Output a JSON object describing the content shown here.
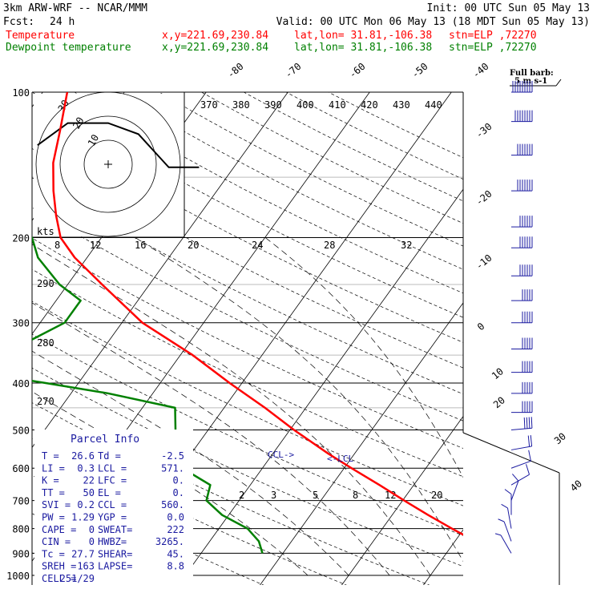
{
  "header": {
    "model": "3km ARW-WRF -- NCAR/MMM",
    "init": "Init: 00 UTC Sun 05 May 13",
    "fcst_label": "Fcst:",
    "fcst_hours": "24 h",
    "valid": "Valid: 00 UTC Mon 06 May 13 (18 MDT Sun 05 May 13)"
  },
  "legend": [
    {
      "name": "Temperature",
      "color": "#ff0000",
      "xy": "x,y=221.69,230.84",
      "latlon": "lat,lon= 31.81,-106.38",
      "stn": "stn=ELP ,72270"
    },
    {
      "name": "Dewpoint temperature",
      "color": "#008000",
      "xy": "x,y=221.69,230.84",
      "latlon": "lat,lon= 31.81,-106.38",
      "stn": "stn=ELP ,72270"
    }
  ],
  "barb_legend": {
    "title": "Full barb:",
    "value": "5 m s-1"
  },
  "hodograph": {
    "units": "kts",
    "ring_labels": [
      "30",
      "20",
      "10"
    ]
  },
  "parcel_info": {
    "title": "Parcel Info",
    "rows": [
      [
        "T  =",
        "26.6",
        "Td =",
        "-2.5"
      ],
      [
        "LI =",
        "0.3",
        "LCL =",
        "571."
      ],
      [
        "K  =",
        "22",
        "LFC =",
        "0."
      ],
      [
        "TT =",
        "50",
        "EL  =",
        "0."
      ],
      [
        "SVI =",
        "0.2",
        "CCL =",
        "560."
      ],
      [
        "PW =",
        "1.29",
        "YGP =",
        "0.0"
      ],
      [
        "CAPE =",
        "0",
        "SWEAT=",
        "222"
      ],
      [
        "CIN =",
        "0",
        "HWBZ=",
        "3265."
      ],
      [
        "Tc =",
        "27.7",
        "SHEAR=",
        "45."
      ],
      [
        "SREH =",
        "163",
        "LAPSE=",
        "8.8"
      ],
      [
        "CELL =",
        "251/29",
        "",
        ""
      ]
    ]
  },
  "annotations": {
    "ccl": "CCL->",
    "lcl": "<-LCL"
  },
  "colors": {
    "temperature": "#ff0000",
    "dewpoint": "#008000",
    "hodograph": "#000000",
    "barbs": "#1a1aa0",
    "parcel_text": "#1a1aa0"
  },
  "chart_data": {
    "type": "line",
    "title": "",
    "xlabel": "",
    "ylabel": "",
    "y_axis": "pressure (hPa, log scale)",
    "pressure_ticks": [
      100,
      200,
      300,
      400,
      500,
      600,
      700,
      800,
      900,
      1000
    ],
    "isotherm_labels": [
      "-80",
      "-70",
      "-60",
      "-50",
      "-40",
      "-30",
      "-20",
      "-10",
      "0",
      "10",
      "20",
      "30",
      "40"
    ],
    "theta_labels": [
      "370",
      "380",
      "390",
      "400",
      "410",
      "420",
      "430",
      "440"
    ],
    "theta_labels_left": [
      "290",
      "280",
      "270"
    ],
    "mixing_ratio_labels_top": [
      "8",
      "12",
      "16",
      "20",
      "24",
      "28",
      "32"
    ],
    "mixing_ratio_labels_bottom": [
      "2",
      "3",
      "5",
      "8",
      "12",
      "20"
    ],
    "series": [
      {
        "name": "Temperature",
        "color": "#ff0000",
        "p": [
          900,
          850,
          800,
          750,
          700,
          650,
          600,
          560,
          500,
          450,
          400,
          350,
          300,
          250,
          220,
          200,
          180,
          160,
          140,
          120,
          100
        ],
        "t": [
          26.6,
          22.5,
          18.5,
          14.4,
          10.2,
          5.8,
          0.9,
          -3.2,
          -9.5,
          -15.0,
          -21.5,
          -28.5,
          -37.5,
          -45.8,
          -51.5,
          -55.0,
          -57.5,
          -60.0,
          -62.5,
          -64.5,
          -67.0
        ]
      },
      {
        "name": "Dewpoint temperature",
        "color": "#008000",
        "p": [
          900,
          850,
          800,
          750,
          700,
          650,
          600,
          550,
          500,
          450,
          420,
          400,
          380,
          350,
          330,
          300,
          270,
          250,
          220,
          200,
          180,
          160,
          140,
          120,
          100
        ],
        "t": [
          -2.5,
          -4.0,
          -6.5,
          -10.8,
          -14.0,
          -14.9,
          -19.8,
          -24.2,
          -24.0,
          -26.0,
          -35.5,
          -44.0,
          -53.0,
          -53.5,
          -50.0,
          -47.0,
          -47.0,
          -51.0,
          -56.0,
          -58.5,
          -65.0,
          -68.0,
          -69.0,
          -71.0,
          -73.0
        ]
      }
    ],
    "hodograph_uv_kts": [
      [
        -7,
        1
      ],
      [
        -4,
        3
      ],
      [
        0,
        3
      ],
      [
        3,
        2
      ],
      [
        5,
        0
      ],
      [
        6,
        -1
      ],
      [
        9,
        -1
      ]
    ],
    "wind_barbs": [
      {
        "p": 100,
        "dir": 270,
        "spd_ms": 45
      },
      {
        "p": 115,
        "dir": 270,
        "spd_ms": 40
      },
      {
        "p": 135,
        "dir": 270,
        "spd_ms": 35
      },
      {
        "p": 160,
        "dir": 270,
        "spd_ms": 35
      },
      {
        "p": 190,
        "dir": 270,
        "spd_ms": 30
      },
      {
        "p": 210,
        "dir": 270,
        "spd_ms": 30
      },
      {
        "p": 240,
        "dir": 270,
        "spd_ms": 30
      },
      {
        "p": 270,
        "dir": 270,
        "spd_ms": 25
      },
      {
        "p": 300,
        "dir": 270,
        "spd_ms": 25
      },
      {
        "p": 340,
        "dir": 270,
        "spd_ms": 25
      },
      {
        "p": 380,
        "dir": 270,
        "spd_ms": 25
      },
      {
        "p": 420,
        "dir": 270,
        "spd_ms": 25
      },
      {
        "p": 460,
        "dir": 270,
        "spd_ms": 25
      },
      {
        "p": 500,
        "dir": 265,
        "spd_ms": 20
      },
      {
        "p": 550,
        "dir": 260,
        "spd_ms": 10
      },
      {
        "p": 600,
        "dir": 250,
        "spd_ms": 5
      },
      {
        "p": 650,
        "dir": 240,
        "spd_ms": 5
      },
      {
        "p": 700,
        "dir": 200,
        "spd_ms": 5
      },
      {
        "p": 750,
        "dir": 180,
        "spd_ms": 5
      },
      {
        "p": 800,
        "dir": 170,
        "spd_ms": 5
      },
      {
        "p": 850,
        "dir": 160,
        "spd_ms": 5
      },
      {
        "p": 900,
        "dir": 150,
        "spd_ms": 5
      }
    ]
  }
}
